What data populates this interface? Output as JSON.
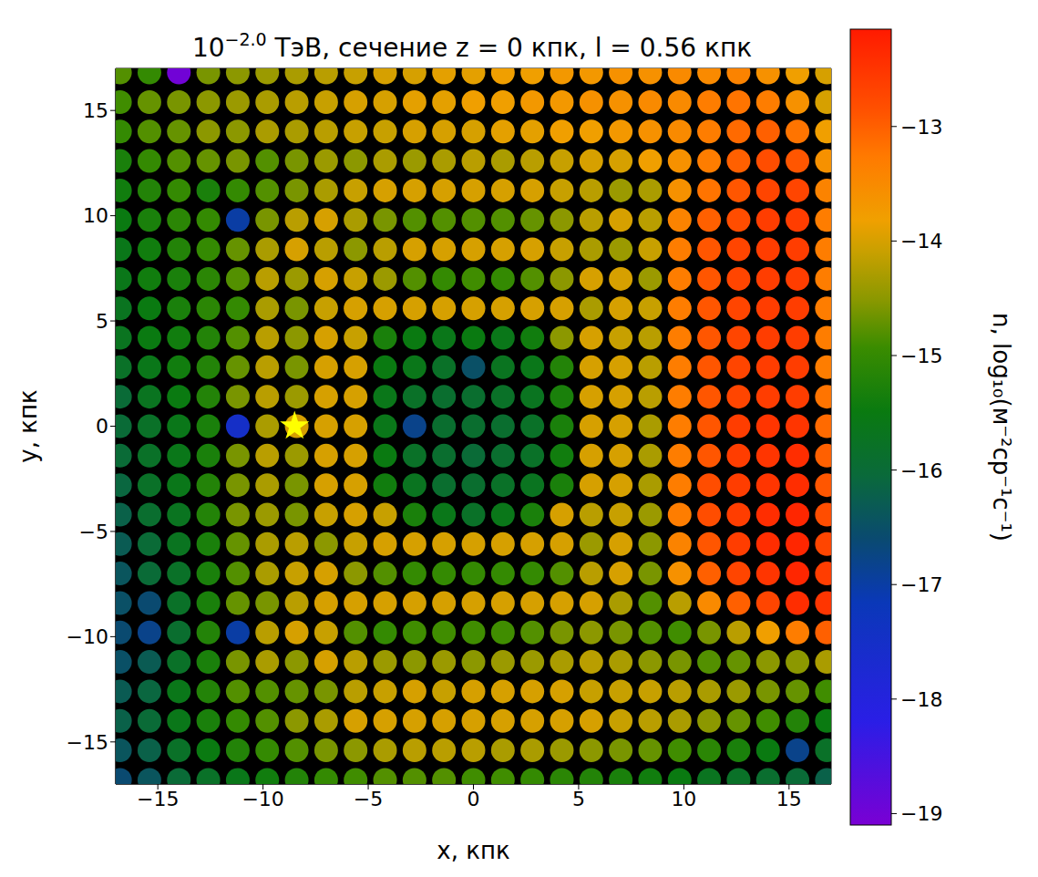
{
  "chart_data": {
    "type": "heatmap",
    "title": {
      "base": "10",
      "exponent": "−2.0",
      "text": " ТэВ, сечение z = 0 кпк, l = 0.56 кпк"
    },
    "xlabel": "x, кпк",
    "ylabel": "y, кпк",
    "xlim": [
      -17,
      17
    ],
    "ylim": [
      -17,
      17
    ],
    "xticks": [
      {
        "value": -15,
        "label": "−15"
      },
      {
        "value": -10,
        "label": "−10"
      },
      {
        "value": -5,
        "label": "−5"
      },
      0,
      5,
      10,
      15
    ],
    "yticks": [
      {
        "value": -15,
        "label": "−15"
      },
      {
        "value": -10,
        "label": "−10"
      },
      {
        "value": -5,
        "label": "−5"
      },
      0,
      5,
      10,
      15
    ],
    "x": [
      -16.8,
      -15.4,
      -14,
      -12.6,
      -11.2,
      -9.8,
      -8.4,
      -7,
      -5.6,
      -4.2,
      -2.8,
      -1.4,
      0,
      1.4,
      2.8,
      4.2,
      5.6,
      7,
      8.4,
      9.8,
      11.2,
      12.6,
      14,
      15.4,
      16.8
    ],
    "y": [
      16.8,
      15.4,
      14,
      12.6,
      11.2,
      9.8,
      8.4,
      7,
      5.6,
      4.2,
      2.8,
      1.4,
      0,
      -1.4,
      -2.8,
      -4.2,
      -5.6,
      -7,
      -8.4,
      -9.8,
      -11.2,
      -12.6,
      -14,
      -15.4,
      -16.8
    ],
    "z": [
      [
        -14.8,
        -15.0,
        -19.0,
        -14.6,
        -14.5,
        -14.4,
        -14.3,
        -14.2,
        -14.1,
        -14.0,
        -14.0,
        -13.9,
        -13.9,
        -13.8,
        -13.8,
        -13.7,
        -13.7,
        -13.6,
        -13.6,
        -13.5,
        -13.5,
        -13.4,
        -13.6,
        -13.8,
        -14.0
      ],
      [
        -14.9,
        -14.7,
        -14.6,
        -14.5,
        -14.4,
        -14.3,
        -14.2,
        -14.1,
        -14.0,
        -14.0,
        -13.9,
        -13.9,
        -13.8,
        -13.8,
        -13.7,
        -13.7,
        -13.6,
        -13.6,
        -13.5,
        -13.5,
        -13.3,
        -13.2,
        -13.3,
        -13.6,
        -14.0
      ],
      [
        -15.0,
        -14.8,
        -14.7,
        -14.5,
        -14.5,
        -14.3,
        -14.3,
        -14.2,
        -14.1,
        -14.1,
        -14.0,
        -14.0,
        -14.0,
        -13.9,
        -13.9,
        -13.8,
        -13.8,
        -13.7,
        -13.6,
        -13.5,
        -13.3,
        -13.1,
        -13.0,
        -13.2,
        -13.8
      ],
      [
        -15.3,
        -15.0,
        -14.8,
        -14.7,
        -14.6,
        -14.8,
        -14.6,
        -14.4,
        -14.5,
        -14.3,
        -14.4,
        -14.3,
        -14.2,
        -14.3,
        -14.2,
        -14.1,
        -14.0,
        -14.0,
        -13.8,
        -13.6,
        -13.3,
        -13.0,
        -12.8,
        -12.9,
        -13.6
      ],
      [
        -15.4,
        -15.2,
        -15.0,
        -15.3,
        -15.0,
        -14.8,
        -14.6,
        -14.3,
        -14.1,
        -14.0,
        -14.0,
        -14.0,
        -14.0,
        -14.0,
        -14.0,
        -14.1,
        -14.2,
        -14.4,
        -14.3,
        -13.6,
        -13.2,
        -12.9,
        -12.7,
        -12.7,
        -13.4
      ],
      [
        -15.5,
        -15.3,
        -15.1,
        -15.0,
        -17.0,
        -14.6,
        -14.2,
        -14.0,
        -14.3,
        -14.6,
        -14.8,
        -14.8,
        -14.8,
        -14.8,
        -14.7,
        -14.5,
        -14.2,
        -14.0,
        -14.2,
        -13.4,
        -13.0,
        -12.8,
        -12.6,
        -12.6,
        -13.3
      ],
      [
        -15.6,
        -15.4,
        -15.2,
        -15.0,
        -14.7,
        -14.3,
        -14.0,
        -14.2,
        -14.5,
        -14.2,
        -14.0,
        -14.0,
        -14.0,
        -14.0,
        -14.0,
        -14.1,
        -14.3,
        -14.4,
        -14.1,
        -13.3,
        -12.9,
        -12.7,
        -12.6,
        -12.6,
        -13.3
      ],
      [
        -15.6,
        -15.4,
        -15.3,
        -15.1,
        -14.8,
        -14.2,
        -14.4,
        -14.0,
        -14.1,
        -14.4,
        -14.8,
        -15.0,
        -14.9,
        -15.0,
        -14.8,
        -14.5,
        -14.0,
        -14.0,
        -14.4,
        -13.3,
        -12.9,
        -12.7,
        -12.6,
        -12.6,
        -13.3
      ],
      [
        -15.7,
        -15.5,
        -15.3,
        -15.1,
        -15.0,
        -14.3,
        -14.6,
        -14.1,
        -14.0,
        -14.0,
        -14.0,
        -14.0,
        -14.0,
        -14.0,
        -14.0,
        -14.0,
        -14.3,
        -14.0,
        -14.1,
        -13.3,
        -12.9,
        -12.7,
        -12.6,
        -12.6,
        -13.3
      ],
      [
        -15.7,
        -15.5,
        -15.4,
        -15.2,
        -14.8,
        -14.2,
        -14.5,
        -14.0,
        -14.1,
        -15.3,
        -15.5,
        -15.6,
        -15.5,
        -15.6,
        -15.4,
        -14.5,
        -14.0,
        -14.1,
        -14.2,
        -13.3,
        -12.9,
        -12.7,
        -12.6,
        -12.6,
        -13.3
      ],
      [
        -15.8,
        -15.6,
        -15.4,
        -15.2,
        -14.7,
        -14.2,
        -14.6,
        -14.0,
        -14.0,
        -15.5,
        -15.6,
        -15.8,
        -16.5,
        -15.7,
        -15.6,
        -15.2,
        -14.0,
        -14.0,
        -14.2,
        -13.3,
        -12.9,
        -12.7,
        -12.6,
        -12.6,
        -13.3
      ],
      [
        -16.0,
        -15.7,
        -15.5,
        -15.2,
        -14.6,
        -14.2,
        -14.4,
        -14.0,
        -14.0,
        -15.6,
        -15.8,
        -15.9,
        -15.9,
        -15.8,
        -15.7,
        -15.3,
        -14.0,
        -14.0,
        -14.2,
        -13.3,
        -12.9,
        -12.7,
        -12.6,
        -12.6,
        -13.2
      ],
      [
        -16.0,
        -15.8,
        -15.6,
        -15.3,
        -17.5,
        -14.3,
        -14.0,
        -14.0,
        -14.0,
        -15.6,
        -16.8,
        -15.9,
        -15.9,
        -15.9,
        -15.8,
        -15.3,
        -14.0,
        -14.0,
        -14.3,
        -13.3,
        -12.9,
        -12.6,
        -12.5,
        -12.5,
        -13.1
      ],
      [
        -16.0,
        -15.8,
        -15.6,
        -15.3,
        -14.6,
        -14.2,
        -14.4,
        -14.0,
        -14.0,
        -15.5,
        -15.8,
        -15.9,
        -16.0,
        -15.9,
        -15.8,
        -15.4,
        -14.0,
        -14.0,
        -14.3,
        -13.3,
        -12.9,
        -12.6,
        -12.5,
        -12.4,
        -13.0
      ],
      [
        -16.1,
        -15.8,
        -15.6,
        -15.2,
        -14.6,
        -14.3,
        -14.6,
        -14.0,
        -14.0,
        -15.4,
        -15.7,
        -15.9,
        -15.9,
        -15.8,
        -15.7,
        -15.3,
        -14.0,
        -14.0,
        -14.3,
        -13.3,
        -12.8,
        -12.6,
        -12.5,
        -12.4,
        -12.9
      ],
      [
        -16.2,
        -15.9,
        -15.7,
        -15.2,
        -14.6,
        -14.4,
        -14.6,
        -14.1,
        -14.0,
        -14.1,
        -15.3,
        -15.6,
        -15.8,
        -15.6,
        -15.3,
        -14.0,
        -14.2,
        -14.1,
        -14.4,
        -13.3,
        -12.8,
        -12.6,
        -12.4,
        -12.3,
        -12.8
      ],
      [
        -16.3,
        -16.0,
        -15.7,
        -15.3,
        -14.7,
        -14.3,
        -14.2,
        -14.5,
        -14.1,
        -14.0,
        -14.0,
        -14.0,
        -14.0,
        -14.0,
        -14.0,
        -14.0,
        -14.4,
        -14.0,
        -14.5,
        -13.4,
        -12.9,
        -12.6,
        -12.4,
        -12.3,
        -12.7
      ],
      [
        -16.4,
        -16.0,
        -15.8,
        -15.3,
        -14.8,
        -14.3,
        -14.1,
        -14.0,
        -14.5,
        -14.8,
        -15.0,
        -15.0,
        -15.0,
        -15.0,
        -15.0,
        -14.8,
        -14.2,
        -14.0,
        -14.6,
        -13.6,
        -13.0,
        -12.7,
        -12.5,
        -12.3,
        -12.6
      ],
      [
        -16.5,
        -16.6,
        -15.8,
        -15.3,
        -14.7,
        -14.6,
        -14.2,
        -14.0,
        -14.0,
        -14.0,
        -14.0,
        -14.0,
        -14.0,
        -14.0,
        -14.0,
        -14.0,
        -14.0,
        -14.3,
        -14.8,
        -14.2,
        -13.5,
        -13.0,
        -12.7,
        -12.4,
        -12.5
      ],
      [
        -16.6,
        -16.8,
        -15.9,
        -15.2,
        -17.0,
        -14.2,
        -14.0,
        -14.1,
        -14.8,
        -15.0,
        -14.9,
        -14.9,
        -14.9,
        -14.9,
        -14.8,
        -14.6,
        -14.5,
        -14.6,
        -14.8,
        -14.9,
        -14.6,
        -14.2,
        -13.8,
        -13.3,
        -13.0
      ],
      [
        -16.5,
        -16.3,
        -15.8,
        -15.3,
        -14.6,
        -14.3,
        -14.5,
        -14.0,
        -14.2,
        -14.4,
        -14.5,
        -14.4,
        -14.5,
        -14.4,
        -14.4,
        -14.3,
        -14.2,
        -14.3,
        -14.5,
        -14.6,
        -14.8,
        -14.7,
        -14.5,
        -14.5,
        -14.3
      ],
      [
        -16.3,
        -16.1,
        -15.6,
        -15.2,
        -14.8,
        -14.8,
        -14.7,
        -14.6,
        -14.2,
        -14.1,
        -14.0,
        -14.1,
        -14.0,
        -14.0,
        -14.0,
        -14.0,
        -14.1,
        -14.1,
        -14.1,
        -14.2,
        -14.3,
        -14.4,
        -14.6,
        -14.7,
        -14.9
      ],
      [
        -16.2,
        -16.0,
        -15.6,
        -15.3,
        -15.0,
        -14.8,
        -14.5,
        -14.3,
        -14.0,
        -14.0,
        -14.0,
        -14.0,
        -14.0,
        -14.0,
        -14.0,
        -14.0,
        -14.0,
        -14.1,
        -14.2,
        -14.3,
        -14.5,
        -14.7,
        -14.9,
        -15.2,
        -15.5
      ],
      [
        -16.4,
        -16.2,
        -15.8,
        -15.5,
        -15.2,
        -15.0,
        -14.8,
        -14.6,
        -14.5,
        -14.3,
        -14.2,
        -14.2,
        -14.2,
        -14.3,
        -14.3,
        -14.4,
        -14.5,
        -14.6,
        -14.7,
        -14.9,
        -15.1,
        -15.3,
        -15.5,
        -16.8,
        -15.8
      ],
      [
        -16.6,
        -16.4,
        -16.0,
        -15.8,
        -15.6,
        -15.4,
        -15.2,
        -15.0,
        -14.9,
        -14.8,
        -14.8,
        -14.8,
        -14.9,
        -14.9,
        -15.0,
        -15.1,
        -15.2,
        -15.3,
        -15.4,
        -15.5,
        -15.7,
        -15.8,
        -15.9,
        -16.0,
        -16.2
      ]
    ],
    "colorbar": {
      "lim": [
        -19.1,
        -12.15
      ],
      "ticks": [
        {
          "value": -13,
          "label": "−13"
        },
        {
          "value": -14,
          "label": "−14"
        },
        {
          "value": -15,
          "label": "−15"
        },
        {
          "value": -16,
          "label": "−16"
        },
        {
          "value": -17,
          "label": "−17"
        },
        {
          "value": -18,
          "label": "−18"
        },
        {
          "value": -19,
          "label": "−19"
        }
      ],
      "label": "n, log₁₀(м⁻²ср⁻¹с⁻¹)"
    },
    "sun": {
      "x": -8.5,
      "y": 0,
      "color": "#ffff00",
      "marker": "star"
    }
  }
}
